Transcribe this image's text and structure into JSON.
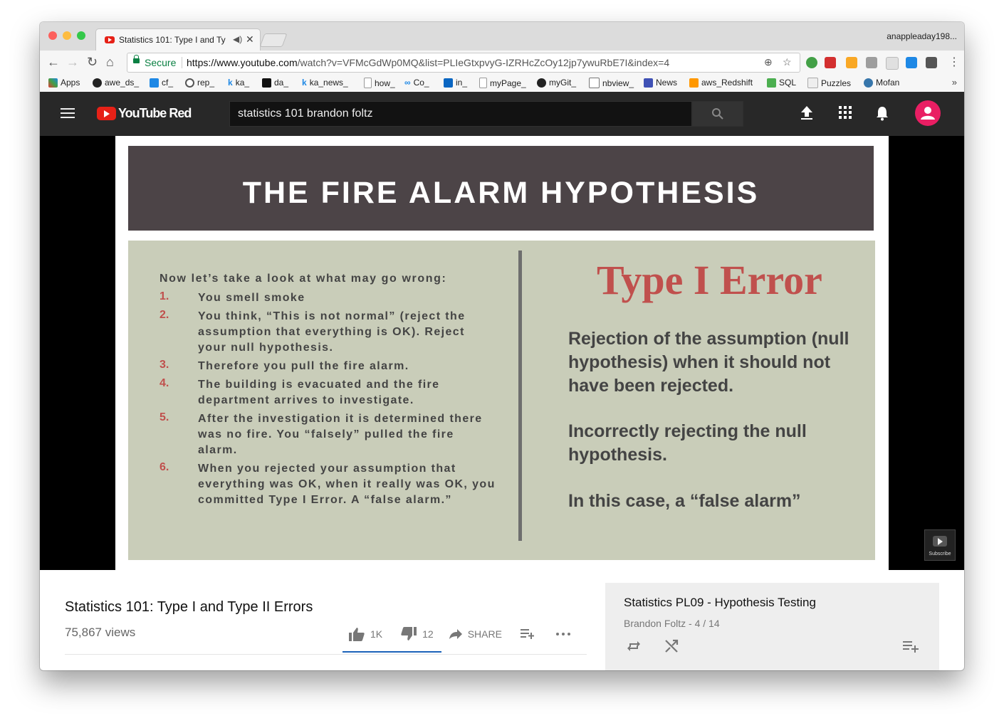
{
  "browser": {
    "tab_title": "Statistics 101: Type I and Ty",
    "profile": "anappleaday198...",
    "secure_label": "Secure",
    "url_host": "https://www.youtube.com",
    "url_path": "/watch?v=VFMcGdWp0MQ&list=PLIeGtxpvyG-IZRHcZcOy12jp7ywuRbE7I&index=4",
    "bookmarks": [
      "Apps",
      "awe_ds_",
      "cf_",
      "rep_",
      "ka_",
      "da_",
      "ka_news_",
      "how_",
      "Co_",
      "in_",
      "myPage_",
      "myGit_",
      "nbview_",
      "News",
      "aws_Redshift",
      "SQL",
      "Puzzles",
      "Mofan"
    ],
    "bookmarks_more": "»"
  },
  "youtube": {
    "brand": "YouTube Red",
    "search_value": "statistics 101 brandon foltz"
  },
  "slide": {
    "banner": "THE FIRE ALARM HYPOTHESIS",
    "intro": "Now let’s take a look at what may go wrong:",
    "items": [
      {
        "num": "1.",
        "text": "You smell smoke"
      },
      {
        "num": "2.",
        "text": "You think, “This is not normal” (reject the assumption that everything is OK). Reject your null hypothesis."
      },
      {
        "num": "3.",
        "text": "Therefore you pull the fire alarm."
      },
      {
        "num": "4.",
        "text": "The building is evacuated and the fire department arrives to investigate."
      },
      {
        "num": "5.",
        "text": "After the investigation it is determined there was no fire. You “falsely” pulled the fire alarm."
      },
      {
        "num": "6.",
        "text": "When you rejected your assumption that everything was OK, when it really was OK, you committed Type I Error. A “false alarm.”"
      }
    ],
    "error_title": "Type I Error",
    "definition": "Rejection of the assumption (null hypothesis) when it should not have been rejected.",
    "restated": "Incorrectly rejecting the null hypothesis.",
    "case": "In this case, a “false alarm”",
    "subscribe": "Subscribe"
  },
  "video": {
    "title": "Statistics 101: Type I and Type II Errors",
    "views": "75,867 views",
    "likes": "1K",
    "dislikes": "12",
    "share": "SHARE"
  },
  "playlist": {
    "title": "Statistics PL09 - Hypothesis Testing",
    "subtitle": "Brandon Foltz - 4 / 14"
  },
  "colors": {
    "accent": "#e62117",
    "slide_red": "#c0504d",
    "banner": "#4c4447",
    "panel": "#c9cdb9"
  }
}
